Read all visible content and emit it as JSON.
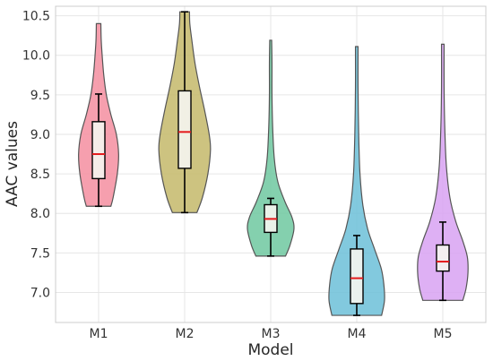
{
  "chart_data": {
    "type": "violin",
    "xlabel": "Model",
    "ylabel": "AAC values",
    "ylim": [
      6.62,
      10.62
    ],
    "yticks": [
      7.0,
      7.5,
      8.0,
      8.5,
      9.0,
      9.5,
      10.0,
      10.5
    ],
    "ytick_labels": [
      "7.0",
      "7.5",
      "8.0",
      "8.5",
      "9.0",
      "9.5",
      "10.0",
      "10.5"
    ],
    "grid": true,
    "categories": [
      "M1",
      "M2",
      "M3",
      "M4",
      "M5"
    ],
    "series": [
      {
        "category": "M1",
        "color": "#f48ea0",
        "range": [
          8.09,
          10.4
        ],
        "whisker_low": 8.09,
        "q1": 8.44,
        "median": 8.75,
        "q3": 9.16,
        "whisker_high": 9.51,
        "density": [
          [
            8.09,
            0.38
          ],
          [
            8.2,
            0.45
          ],
          [
            8.5,
            0.58
          ],
          [
            8.75,
            0.62
          ],
          [
            9.0,
            0.55
          ],
          [
            9.25,
            0.38
          ],
          [
            9.5,
            0.24
          ],
          [
            9.75,
            0.16
          ],
          [
            10.0,
            0.11
          ],
          [
            10.2,
            0.08
          ],
          [
            10.4,
            0.07
          ]
        ]
      },
      {
        "category": "M2",
        "color": "#c4b86a",
        "range": [
          8.01,
          10.55
        ],
        "whisker_low": 8.01,
        "q1": 8.57,
        "median": 9.03,
        "q3": 9.55,
        "whisker_high": 10.55,
        "density": [
          [
            8.01,
            0.38
          ],
          [
            8.2,
            0.55
          ],
          [
            8.5,
            0.72
          ],
          [
            8.8,
            0.8
          ],
          [
            9.0,
            0.76
          ],
          [
            9.3,
            0.62
          ],
          [
            9.6,
            0.46
          ],
          [
            9.9,
            0.32
          ],
          [
            10.2,
            0.22
          ],
          [
            10.4,
            0.16
          ],
          [
            10.55,
            0.15
          ]
        ]
      },
      {
        "category": "M3",
        "color": "#6fc8a0",
        "range": [
          7.46,
          10.19
        ],
        "whisker_low": 7.46,
        "q1": 7.76,
        "median": 7.93,
        "q3": 8.11,
        "whisker_high": 8.19,
        "density": [
          [
            7.46,
            0.46
          ],
          [
            7.6,
            0.6
          ],
          [
            7.8,
            0.72
          ],
          [
            7.95,
            0.66
          ],
          [
            8.15,
            0.44
          ],
          [
            8.4,
            0.22
          ],
          [
            8.7,
            0.11
          ],
          [
            9.1,
            0.06
          ],
          [
            9.5,
            0.04
          ],
          [
            9.9,
            0.04
          ],
          [
            10.19,
            0.03
          ]
        ]
      },
      {
        "category": "M4",
        "color": "#6cbfd8",
        "range": [
          6.71,
          10.11
        ],
        "whisker_low": 6.71,
        "q1": 6.86,
        "median": 7.18,
        "q3": 7.55,
        "whisker_high": 7.72,
        "density": [
          [
            6.71,
            0.77
          ],
          [
            6.9,
            0.86
          ],
          [
            7.1,
            0.84
          ],
          [
            7.3,
            0.76
          ],
          [
            7.55,
            0.55
          ],
          [
            7.8,
            0.34
          ],
          [
            8.1,
            0.19
          ],
          [
            8.5,
            0.1
          ],
          [
            9.0,
            0.06
          ],
          [
            9.6,
            0.04
          ],
          [
            10.11,
            0.04
          ]
        ]
      },
      {
        "category": "M5",
        "color": "#d8a2f2",
        "range": [
          6.9,
          10.14
        ],
        "whisker_low": 6.9,
        "q1": 7.27,
        "median": 7.39,
        "q3": 7.6,
        "whisker_high": 7.89,
        "density": [
          [
            6.9,
            0.62
          ],
          [
            7.05,
            0.72
          ],
          [
            7.25,
            0.78
          ],
          [
            7.45,
            0.76
          ],
          [
            7.65,
            0.62
          ],
          [
            7.9,
            0.4
          ],
          [
            8.2,
            0.22
          ],
          [
            8.6,
            0.11
          ],
          [
            9.1,
            0.06
          ],
          [
            9.6,
            0.04
          ],
          [
            10.14,
            0.04
          ]
        ]
      }
    ]
  }
}
